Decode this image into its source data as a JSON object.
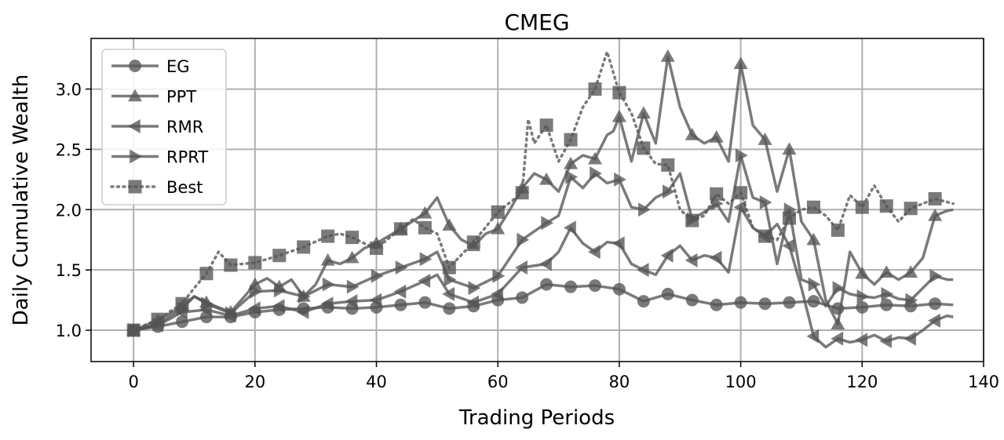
{
  "chart_data": {
    "type": "line",
    "title": "CMEG",
    "xlabel": "Trading Periods",
    "ylabel": "Daily Cumulative Wealth",
    "xlim": [
      -7,
      140
    ],
    "ylim": [
      0.74,
      3.42
    ],
    "xticks": [
      0,
      20,
      40,
      60,
      80,
      100,
      120,
      140
    ],
    "yticks": [
      1.0,
      1.5,
      2.0,
      2.5,
      3.0
    ],
    "xtick_labels": [
      "0",
      "20",
      "40",
      "60",
      "80",
      "100",
      "120",
      "140"
    ],
    "ytick_labels": [
      "1.0",
      "1.5",
      "2.0",
      "2.5",
      "3.0"
    ],
    "grid": true,
    "legend_position": "upper-left",
    "line_color": "#555555",
    "marker_every": 4,
    "series": [
      {
        "name": "EG",
        "marker": "circle",
        "style": "solid",
        "points": [
          [
            0,
            1.0
          ],
          [
            4,
            1.03
          ],
          [
            8,
            1.07
          ],
          [
            12,
            1.11
          ],
          [
            16,
            1.11
          ],
          [
            20,
            1.15
          ],
          [
            24,
            1.17
          ],
          [
            28,
            1.18
          ],
          [
            32,
            1.19
          ],
          [
            36,
            1.18
          ],
          [
            40,
            1.19
          ],
          [
            44,
            1.21
          ],
          [
            48,
            1.23
          ],
          [
            52,
            1.18
          ],
          [
            56,
            1.2
          ],
          [
            60,
            1.25
          ],
          [
            64,
            1.27
          ],
          [
            68,
            1.38
          ],
          [
            72,
            1.36
          ],
          [
            76,
            1.37
          ],
          [
            80,
            1.34
          ],
          [
            84,
            1.24
          ],
          [
            88,
            1.3
          ],
          [
            92,
            1.25
          ],
          [
            96,
            1.21
          ],
          [
            100,
            1.23
          ],
          [
            104,
            1.22
          ],
          [
            108,
            1.23
          ],
          [
            112,
            1.24
          ],
          [
            116,
            1.18
          ],
          [
            120,
            1.19
          ],
          [
            124,
            1.21
          ],
          [
            128,
            1.2
          ],
          [
            132,
            1.22
          ],
          [
            135,
            1.21
          ]
        ]
      },
      {
        "name": "PPT",
        "marker": "triangle-up",
        "style": "solid",
        "points": [
          [
            0,
            1.0
          ],
          [
            4,
            1.08
          ],
          [
            8,
            1.2
          ],
          [
            10,
            1.28
          ],
          [
            12,
            1.23
          ],
          [
            16,
            1.15
          ],
          [
            20,
            1.38
          ],
          [
            22,
            1.43
          ],
          [
            24,
            1.36
          ],
          [
            26,
            1.42
          ],
          [
            28,
            1.28
          ],
          [
            30,
            1.38
          ],
          [
            32,
            1.58
          ],
          [
            34,
            1.55
          ],
          [
            36,
            1.6
          ],
          [
            38,
            1.68
          ],
          [
            40,
            1.72
          ],
          [
            44,
            1.84
          ],
          [
            48,
            1.97
          ],
          [
            50,
            2.1
          ],
          [
            52,
            1.87
          ],
          [
            54,
            1.75
          ],
          [
            56,
            1.7
          ],
          [
            58,
            1.8
          ],
          [
            60,
            1.84
          ],
          [
            62,
            2.0
          ],
          [
            64,
            2.18
          ],
          [
            66,
            2.3
          ],
          [
            68,
            2.25
          ],
          [
            70,
            2.15
          ],
          [
            72,
            2.38
          ],
          [
            74,
            2.45
          ],
          [
            76,
            2.42
          ],
          [
            78,
            2.62
          ],
          [
            79,
            2.65
          ],
          [
            80,
            2.77
          ],
          [
            82,
            2.4
          ],
          [
            84,
            2.8
          ],
          [
            86,
            2.55
          ],
          [
            88,
            3.27
          ],
          [
            90,
            2.85
          ],
          [
            92,
            2.62
          ],
          [
            94,
            2.55
          ],
          [
            96,
            2.6
          ],
          [
            98,
            2.4
          ],
          [
            100,
            3.21
          ],
          [
            102,
            2.7
          ],
          [
            104,
            2.58
          ],
          [
            106,
            2.15
          ],
          [
            108,
            2.5
          ],
          [
            110,
            1.9
          ],
          [
            112,
            1.75
          ],
          [
            114,
            1.25
          ],
          [
            116,
            1.05
          ],
          [
            118,
            1.65
          ],
          [
            120,
            1.47
          ],
          [
            122,
            1.38
          ],
          [
            124,
            1.48
          ],
          [
            126,
            1.42
          ],
          [
            128,
            1.48
          ],
          [
            130,
            1.6
          ],
          [
            132,
            1.95
          ],
          [
            134,
            1.99
          ],
          [
            135,
            2.0
          ]
        ]
      },
      {
        "name": "RMR",
        "marker": "triangle-left",
        "style": "solid",
        "points": [
          [
            0,
            1.0
          ],
          [
            4,
            1.04
          ],
          [
            8,
            1.15
          ],
          [
            12,
            1.17
          ],
          [
            16,
            1.12
          ],
          [
            20,
            1.18
          ],
          [
            24,
            1.2
          ],
          [
            28,
            1.15
          ],
          [
            32,
            1.22
          ],
          [
            36,
            1.24
          ],
          [
            40,
            1.25
          ],
          [
            44,
            1.32
          ],
          [
            48,
            1.41
          ],
          [
            50,
            1.46
          ],
          [
            52,
            1.3
          ],
          [
            56,
            1.23
          ],
          [
            60,
            1.3
          ],
          [
            64,
            1.52
          ],
          [
            68,
            1.55
          ],
          [
            70,
            1.65
          ],
          [
            72,
            1.85
          ],
          [
            74,
            1.72
          ],
          [
            76,
            1.65
          ],
          [
            78,
            1.73
          ],
          [
            80,
            1.72
          ],
          [
            82,
            1.55
          ],
          [
            84,
            1.5
          ],
          [
            86,
            1.46
          ],
          [
            88,
            1.62
          ],
          [
            90,
            1.7
          ],
          [
            92,
            1.58
          ],
          [
            94,
            1.62
          ],
          [
            96,
            1.6
          ],
          [
            98,
            1.48
          ],
          [
            100,
            2.02
          ],
          [
            102,
            1.85
          ],
          [
            104,
            1.78
          ],
          [
            106,
            1.88
          ],
          [
            108,
            1.7
          ],
          [
            110,
            1.35
          ],
          [
            112,
            0.95
          ],
          [
            114,
            0.86
          ],
          [
            116,
            0.93
          ],
          [
            118,
            0.9
          ],
          [
            120,
            0.92
          ],
          [
            122,
            0.96
          ],
          [
            124,
            0.91
          ],
          [
            126,
            0.94
          ],
          [
            128,
            0.93
          ],
          [
            130,
            1.0
          ],
          [
            132,
            1.08
          ],
          [
            134,
            1.12
          ],
          [
            135,
            1.11
          ]
        ]
      },
      {
        "name": "RPRT",
        "marker": "triangle-right",
        "style": "solid",
        "points": [
          [
            0,
            1.0
          ],
          [
            4,
            1.05
          ],
          [
            8,
            1.18
          ],
          [
            10,
            1.28
          ],
          [
            12,
            1.22
          ],
          [
            16,
            1.14
          ],
          [
            20,
            1.32
          ],
          [
            24,
            1.33
          ],
          [
            28,
            1.28
          ],
          [
            32,
            1.38
          ],
          [
            36,
            1.36
          ],
          [
            40,
            1.45
          ],
          [
            44,
            1.52
          ],
          [
            48,
            1.59
          ],
          [
            50,
            1.65
          ],
          [
            52,
            1.42
          ],
          [
            56,
            1.35
          ],
          [
            60,
            1.45
          ],
          [
            64,
            1.75
          ],
          [
            68,
            1.89
          ],
          [
            70,
            1.95
          ],
          [
            72,
            2.27
          ],
          [
            74,
            2.18
          ],
          [
            76,
            2.3
          ],
          [
            78,
            2.22
          ],
          [
            80,
            2.25
          ],
          [
            82,
            2.02
          ],
          [
            84,
            2.0
          ],
          [
            86,
            2.1
          ],
          [
            88,
            2.15
          ],
          [
            90,
            2.3
          ],
          [
            92,
            1.92
          ],
          [
            94,
            1.98
          ],
          [
            96,
            2.05
          ],
          [
            98,
            1.9
          ],
          [
            100,
            2.45
          ],
          [
            102,
            2.1
          ],
          [
            104,
            2.06
          ],
          [
            106,
            1.55
          ],
          [
            108,
            2.0
          ],
          [
            110,
            1.42
          ],
          [
            112,
            1.38
          ],
          [
            114,
            1.2
          ],
          [
            116,
            1.35
          ],
          [
            118,
            1.3
          ],
          [
            120,
            1.28
          ],
          [
            122,
            1.27
          ],
          [
            124,
            1.3
          ],
          [
            126,
            1.26
          ],
          [
            128,
            1.25
          ],
          [
            130,
            1.35
          ],
          [
            132,
            1.45
          ],
          [
            134,
            1.42
          ],
          [
            135,
            1.42
          ]
        ]
      },
      {
        "name": "Best",
        "marker": "square",
        "style": "dotted",
        "points": [
          [
            0,
            1.0
          ],
          [
            4,
            1.09
          ],
          [
            8,
            1.22
          ],
          [
            10,
            1.35
          ],
          [
            12,
            1.47
          ],
          [
            14,
            1.65
          ],
          [
            16,
            1.54
          ],
          [
            20,
            1.56
          ],
          [
            24,
            1.62
          ],
          [
            28,
            1.69
          ],
          [
            32,
            1.78
          ],
          [
            34,
            1.8
          ],
          [
            36,
            1.77
          ],
          [
            38,
            1.72
          ],
          [
            40,
            1.68
          ],
          [
            44,
            1.84
          ],
          [
            46,
            1.92
          ],
          [
            48,
            1.85
          ],
          [
            50,
            1.8
          ],
          [
            52,
            1.52
          ],
          [
            56,
            1.73
          ],
          [
            60,
            1.98
          ],
          [
            64,
            2.14
          ],
          [
            65,
            2.75
          ],
          [
            66,
            2.55
          ],
          [
            68,
            2.7
          ],
          [
            70,
            2.4
          ],
          [
            72,
            2.58
          ],
          [
            74,
            2.85
          ],
          [
            76,
            3.0
          ],
          [
            78,
            3.31
          ],
          [
            80,
            2.97
          ],
          [
            82,
            2.8
          ],
          [
            84,
            2.51
          ],
          [
            86,
            2.38
          ],
          [
            88,
            2.37
          ],
          [
            90,
            2.0
          ],
          [
            92,
            1.91
          ],
          [
            94,
            1.95
          ],
          [
            96,
            2.13
          ],
          [
            98,
            2.05
          ],
          [
            100,
            2.14
          ],
          [
            102,
            1.85
          ],
          [
            104,
            1.78
          ],
          [
            106,
            1.75
          ],
          [
            108,
            1.93
          ],
          [
            110,
            2.0
          ],
          [
            112,
            2.02
          ],
          [
            114,
            1.95
          ],
          [
            116,
            1.83
          ],
          [
            118,
            2.12
          ],
          [
            120,
            2.02
          ],
          [
            122,
            2.2
          ],
          [
            124,
            2.03
          ],
          [
            126,
            1.9
          ],
          [
            128,
            2.01
          ],
          [
            130,
            2.05
          ],
          [
            132,
            2.09
          ],
          [
            135,
            2.05
          ]
        ]
      }
    ]
  }
}
